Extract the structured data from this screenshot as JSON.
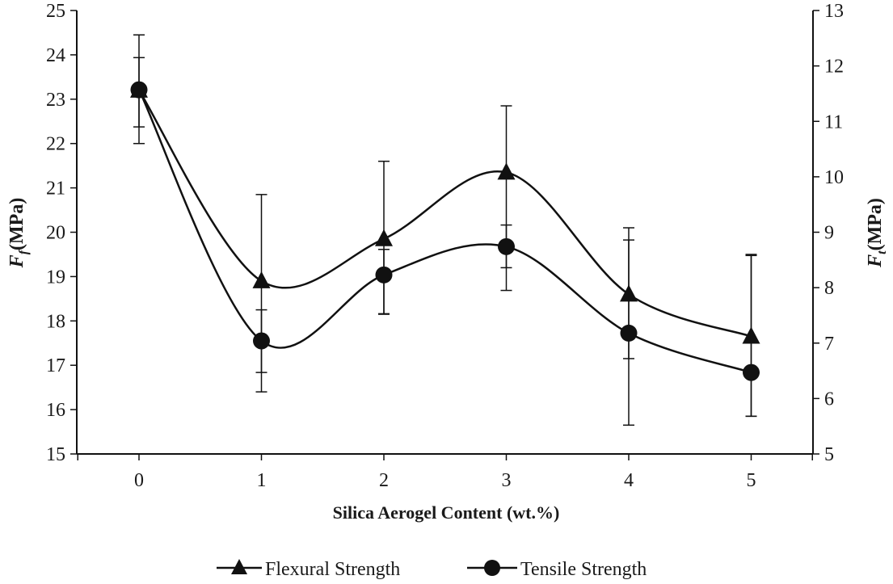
{
  "chart_data": {
    "type": "line",
    "xlabel": "Silica Aerogel Content (wt.%)",
    "x": [
      0,
      1,
      2,
      3,
      4,
      5
    ],
    "xlim": [
      -0.8,
      5.5
    ],
    "x_ticks": [
      "0",
      "1",
      "2",
      "3",
      "4",
      "5"
    ],
    "y_left": {
      "label_main": "F",
      "label_sub": "f",
      "label_unit": "(MPa)",
      "range": [
        15,
        25
      ],
      "ticks": [
        "15",
        "16",
        "17",
        "18",
        "19",
        "20",
        "21",
        "22",
        "23",
        "24",
        "25"
      ]
    },
    "y_right": {
      "label_main": "F",
      "label_sub": "t",
      "label_unit": "(MPa)",
      "range": [
        5,
        13
      ],
      "ticks": [
        "5",
        "6",
        "7",
        "8",
        "9",
        "10",
        "11",
        "12",
        "13"
      ]
    },
    "series": [
      {
        "name": "Flexural Strength",
        "axis": "left",
        "marker": "triangle",
        "values": [
          23.2,
          18.9,
          19.85,
          21.35,
          18.6,
          17.65
        ],
        "err_low": [
          22.0,
          16.4,
          18.15,
          19.2,
          17.15,
          15.85
        ],
        "err_high": [
          24.45,
          20.85,
          21.6,
          22.85,
          20.1,
          19.5
        ]
      },
      {
        "name": "Tensile Strength",
        "axis": "right",
        "marker": "circle",
        "values": [
          11.57,
          7.04,
          8.23,
          8.74,
          7.18,
          6.47
        ],
        "err_low": [
          10.9,
          6.47,
          7.53,
          7.95,
          5.52,
          5.68
        ],
        "err_high": [
          12.15,
          7.6,
          8.69,
          9.13,
          8.86,
          8.58
        ]
      }
    ],
    "legend": {
      "placement": "bottom"
    },
    "grid": false
  }
}
